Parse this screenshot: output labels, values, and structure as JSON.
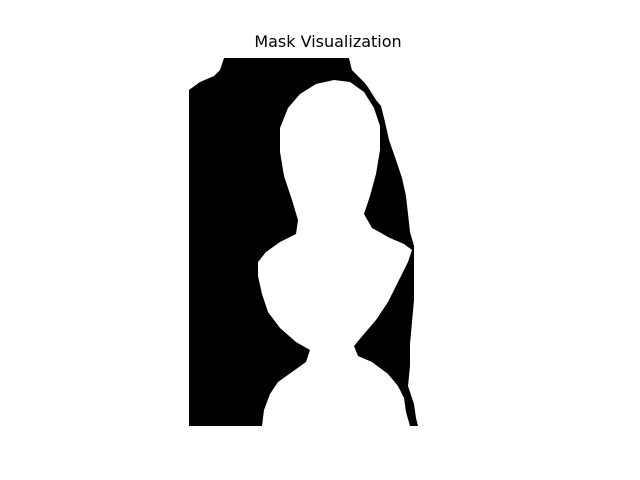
{
  "figure": {
    "title": "Mask Visualization"
  },
  "colors": {
    "background": "#ffffff",
    "mask_foreground": "#ffffff",
    "mask_background": "#000000"
  }
}
